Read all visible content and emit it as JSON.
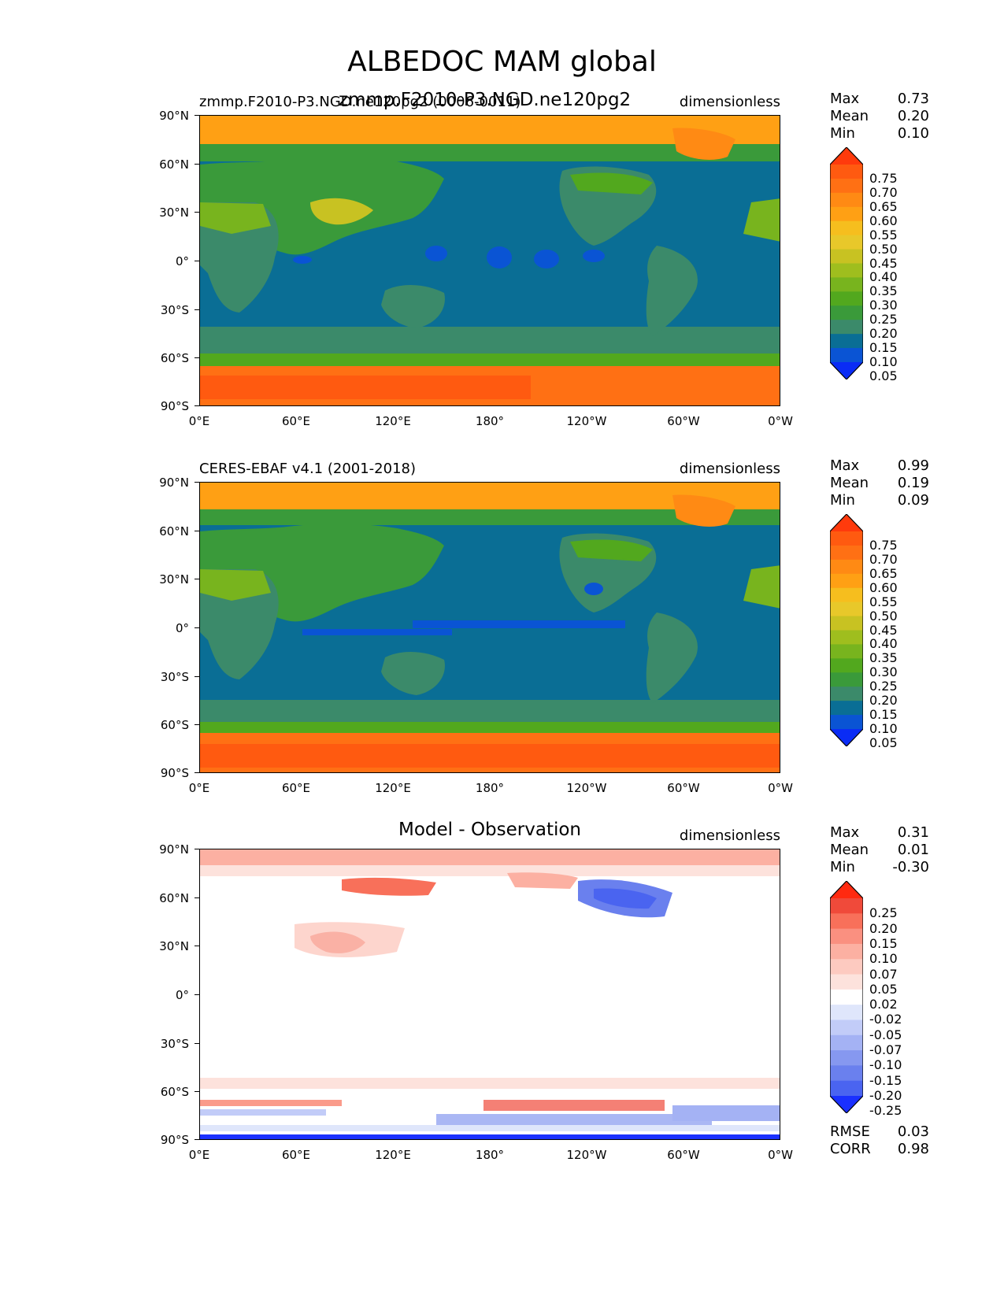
{
  "title": "ALBEDOC MAM global",
  "lon_ticks": [
    "0°E",
    "60°E",
    "120°E",
    "180°",
    "120°W",
    "60°W",
    "0°W"
  ],
  "lat_ticks": [
    "90°N",
    "60°N",
    "30°N",
    "0°",
    "30°S",
    "60°S",
    "90°S"
  ],
  "panels": [
    {
      "left_title": "zmmp.F2010-P3.NGD.ne120pg2 (0006-0011)",
      "overlay_title": "zmmp.F2010-P3.NGD.ne120pg2",
      "center_title": "",
      "units": "dimensionless",
      "stats": {
        "max_label": "Max",
        "max": "0.73",
        "mean_label": "Mean",
        "mean": "0.20",
        "min_label": "Min",
        "min": "0.10"
      },
      "colorbar": {
        "levels": [
          "0.75",
          "0.70",
          "0.65",
          "0.60",
          "0.55",
          "0.50",
          "0.45",
          "0.40",
          "0.35",
          "0.30",
          "0.25",
          "0.20",
          "0.15",
          "0.10",
          "0.05"
        ],
        "colors": [
          "#ff3a0c",
          "#ff5a10",
          "#ff7014",
          "#ff8a14",
          "#ffa014",
          "#f6be1e",
          "#e8c82a",
          "#c8c222",
          "#9fbe1e",
          "#78b41e",
          "#52a81e",
          "#3a9a3a",
          "#3b8a6a",
          "#0a6e95",
          "#0a54d4",
          "#0a2cf5"
        ]
      }
    },
    {
      "left_title": "CERES-EBAF v4.1 (2001-2018)",
      "overlay_title": "",
      "center_title": "",
      "units": "dimensionless",
      "stats": {
        "max_label": "Max",
        "max": "0.99",
        "mean_label": "Mean",
        "mean": "0.19",
        "min_label": "Min",
        "min": "0.09"
      },
      "colorbar": {
        "levels": [
          "0.75",
          "0.70",
          "0.65",
          "0.60",
          "0.55",
          "0.50",
          "0.45",
          "0.40",
          "0.35",
          "0.30",
          "0.25",
          "0.20",
          "0.15",
          "0.10",
          "0.05"
        ],
        "colors": [
          "#ff3a0c",
          "#ff5a10",
          "#ff7014",
          "#ff8a14",
          "#ffa014",
          "#f6be1e",
          "#e8c82a",
          "#c8c222",
          "#9fbe1e",
          "#78b41e",
          "#52a81e",
          "#3a9a3a",
          "#3b8a6a",
          "#0a6e95",
          "#0a54d4",
          "#0a2cf5"
        ]
      }
    },
    {
      "left_title": "",
      "overlay_title": "",
      "center_title": "Model - Observation",
      "units": "dimensionless",
      "stats": {
        "max_label": "Max",
        "max": "0.31",
        "mean_label": "Mean",
        "mean": "0.01",
        "min_label": "Min",
        "min": "-0.30"
      },
      "colorbar": {
        "levels": [
          "0.25",
          "0.20",
          "0.15",
          "0.10",
          "0.07",
          "0.05",
          "0.02",
          "-0.02",
          "-0.05",
          "-0.07",
          "-0.10",
          "-0.15",
          "-0.20",
          "-0.25"
        ],
        "colors": [
          "#ff2a10",
          "#f04a3a",
          "#f8705a",
          "#fa9080",
          "#fcb0a2",
          "#fdcac0",
          "#fde2dc",
          "#ffffff",
          "#dfe6fb",
          "#c2ccf8",
          "#a4b2f4",
          "#8698f0",
          "#6a80ee",
          "#4a64f0",
          "#1a30ff"
        ]
      },
      "footer": {
        "rmse_label": "RMSE",
        "rmse": "0.03",
        "corr_label": "CORR",
        "corr": "0.98"
      }
    }
  ]
}
